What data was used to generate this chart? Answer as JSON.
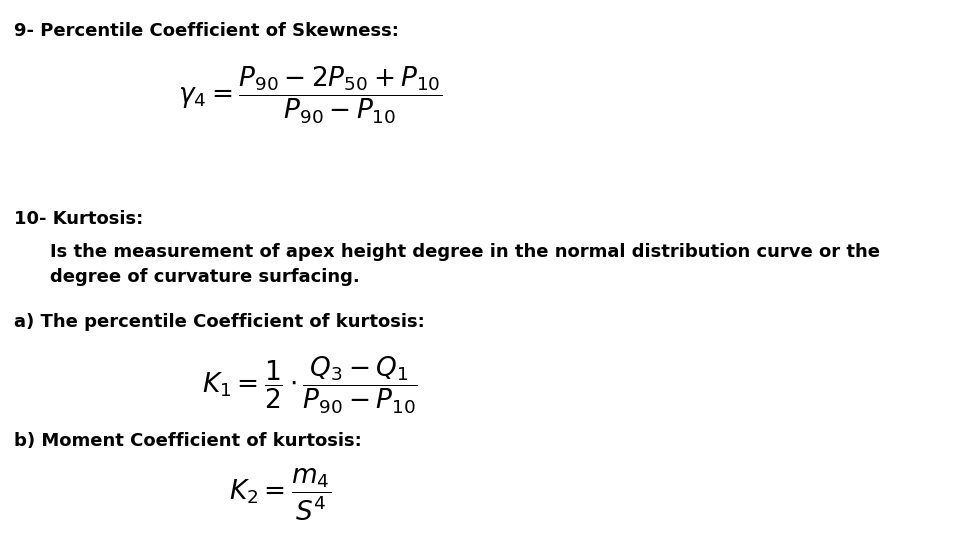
{
  "background_color": "#ffffff",
  "text_color": "#000000",
  "title1": "9- Percentile Coefficient of Skewness:",
  "formula1": "$\\gamma_4 = \\dfrac{P_{90} - 2P_{50} + P_{10}}{P_{90} - P_{10}}$",
  "title2": "10- Kurtosis:",
  "desc2_line1": "Is the measurement of apex height degree in the normal distribution curve or the",
  "desc2_line2": "degree of curvature surfacing.",
  "subtitle2a": "a) The percentile Coefficient of kurtosis:",
  "formula2a": "$K_1 = \\dfrac{1}{2} \\cdot \\dfrac{Q_3 - Q_1}{P_{90} - P_{10}}$",
  "subtitle2b": "b) Moment Coefficient of kurtosis:",
  "formula2b": "$K_2 = \\dfrac{m_4}{S^4}$",
  "font_size_heading": 13,
  "font_size_formula": 19,
  "font_size_text": 13,
  "fig_width": 9.6,
  "fig_height": 5.4,
  "dpi": 100
}
